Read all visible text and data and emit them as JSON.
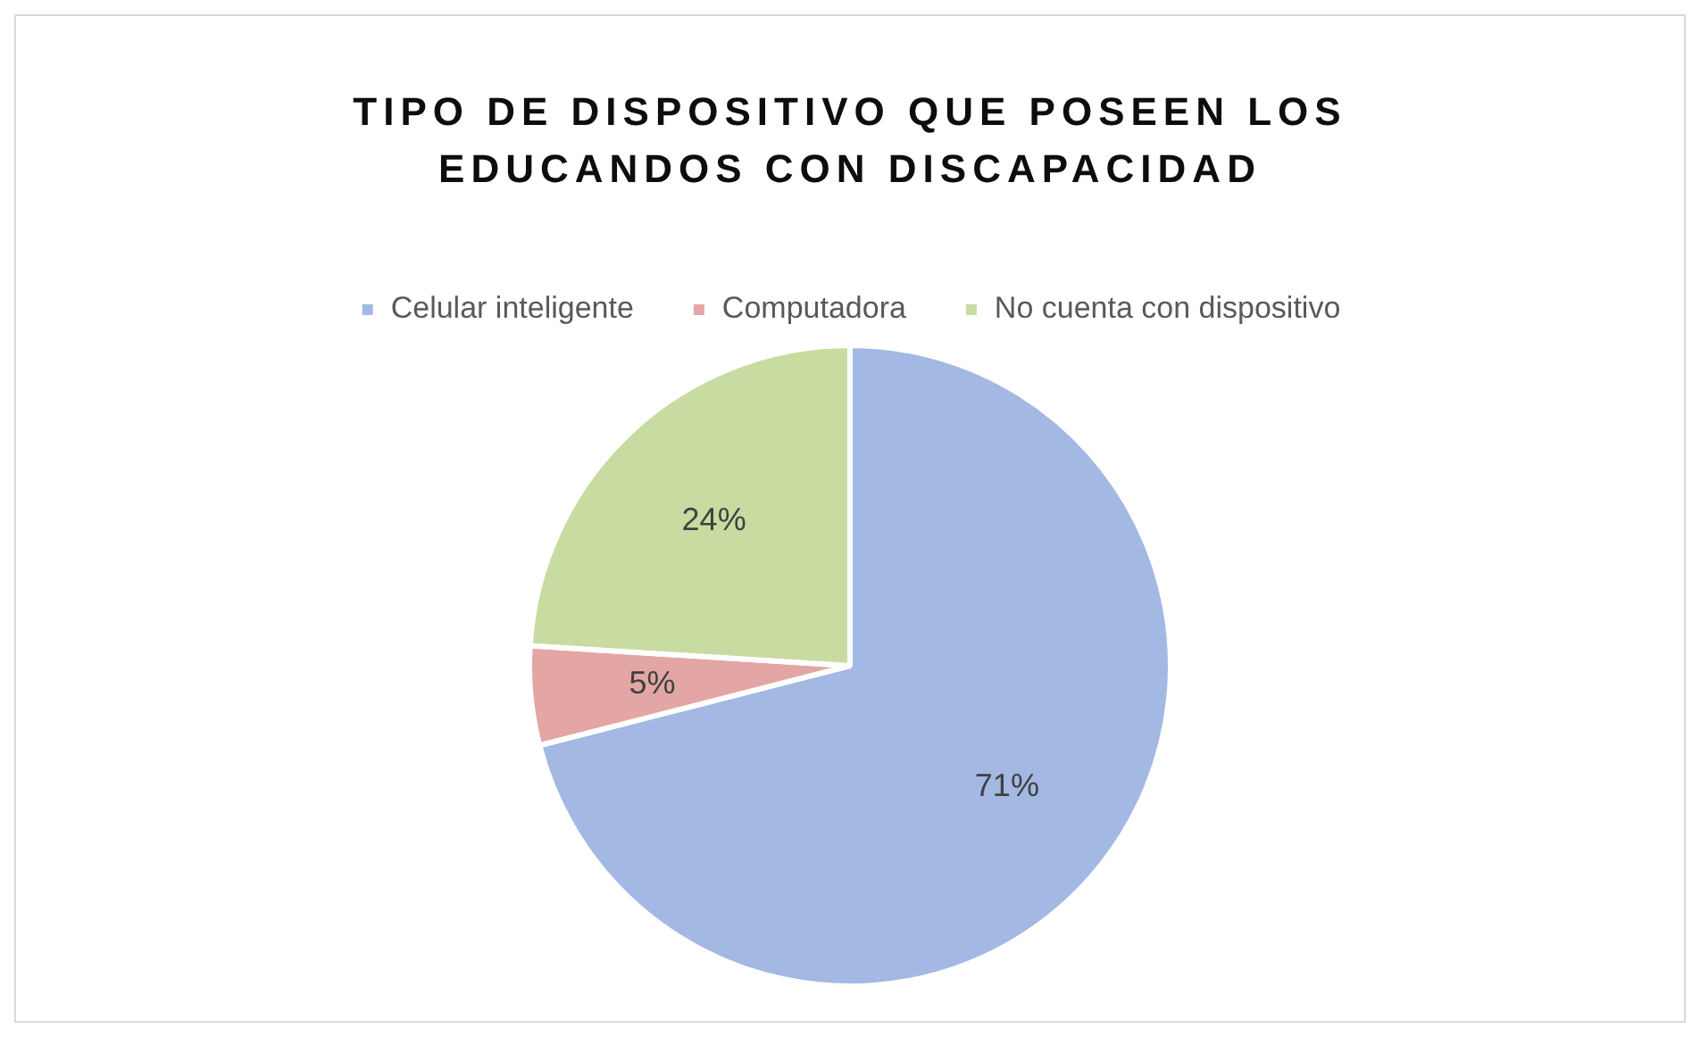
{
  "chart_data": {
    "type": "pie",
    "title": "TIPO DE DISPOSITIVO QUE POSEEN LOS EDUCANDOS CON DISCAPACIDAD",
    "categories": [
      "Celular inteligente",
      "Computadora",
      "No cuenta con dispositivo"
    ],
    "values": [
      71,
      5,
      24
    ],
    "colors": [
      "#a3b8e2",
      "#e3a6a4",
      "#c8dba0"
    ],
    "value_labels": [
      "71%",
      "5%",
      "24%"
    ],
    "legend": "top"
  }
}
